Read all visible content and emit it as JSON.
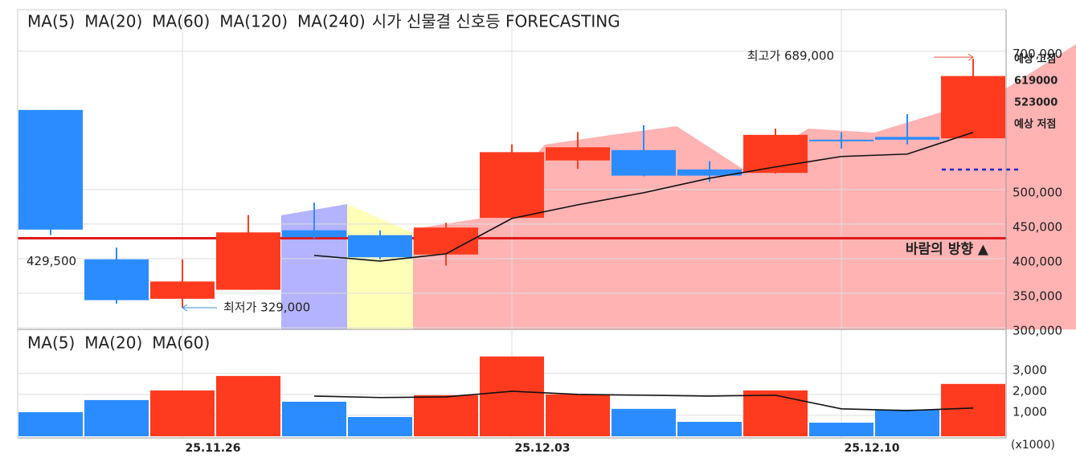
{
  "chart_data": [
    {
      "type": "candlestick",
      "legend": [
        {
          "name": "MA(5)",
          "color": "#111111"
        },
        {
          "name": "MA(20)",
          "color": "#e02020"
        },
        {
          "name": "MA(60)",
          "color": "#1a8a1a"
        },
        {
          "name": "MA(120)",
          "color": "#2020c0"
        },
        {
          "name": "MA(240)",
          "color": "#e020e0"
        }
      ],
      "title": "시가 신물결 신호등 FORECASTING",
      "categories": [
        null,
        null,
        "25.11.26",
        null,
        null,
        null,
        null,
        "25.12.03",
        null,
        null,
        null,
        null,
        "25.12.10",
        null,
        null
      ],
      "open": [
        615000,
        399000,
        342000,
        355000,
        441000,
        434000,
        406000,
        459000,
        542000,
        557000,
        529000,
        524000,
        572000,
        576000,
        574000
      ],
      "high": [
        615000,
        416000,
        399000,
        463000,
        481000,
        441000,
        452000,
        565000,
        583000,
        593000,
        541000,
        588000,
        583000,
        609000,
        689000
      ],
      "low": [
        434000,
        335000,
        329000,
        355000,
        429000,
        399000,
        390000,
        459000,
        530000,
        519000,
        511000,
        523000,
        559000,
        565000,
        574000
      ],
      "close": [
        442000,
        340000,
        367000,
        438000,
        431000,
        402000,
        445000,
        554000,
        561000,
        520000,
        520000,
        579000,
        570000,
        572000,
        664000
      ],
      "up_color": "#ff3b1f",
      "down_color": "#2b8cff",
      "series": [
        {
          "name": "MA(5)",
          "color": "#111111",
          "values": [
            null,
            null,
            null,
            null,
            404700,
            396500,
            407000,
            458100,
            477900,
            495300,
            516300,
            532600,
            547700,
            551200,
            582600
          ]
        }
      ],
      "reference_line": {
        "value": 429500,
        "label": "429,500",
        "color": "#e01818"
      },
      "annotations": {
        "high": "최고가 689,000",
        "low": "최저가 329,000",
        "wind": "바람의 방향 ▲"
      },
      "forecast": {
        "high_label": "예상 고점",
        "high": 619000,
        "low": 523000,
        "low_label": "예상 저점"
      },
      "ylim": [
        300000,
        760000
      ],
      "yticks": [
        {
          "value": 300000,
          "label": "300,000"
        },
        {
          "value": 350000,
          "label": "350,000"
        },
        {
          "value": 400000,
          "label": "400,000"
        },
        {
          "value": 450000,
          "label": "450,000"
        },
        {
          "value": 500000,
          "label": "500,000"
        },
        {
          "value": 700000,
          "label": "700,000"
        }
      ],
      "grid": true
    },
    {
      "type": "bar",
      "legend": [
        {
          "name": "MA(5)",
          "color": "#111111"
        },
        {
          "name": "MA(20)",
          "color": "#e02020"
        },
        {
          "name": "MA(60)",
          "color": "#1a8a1a"
        }
      ],
      "values": [
        1150,
        1730,
        2190,
        2880,
        1650,
        920,
        1960,
        3810,
        2000,
        1310,
        690,
        2190,
        650,
        1270,
        2500
      ],
      "series": [
        {
          "name": "MA(5)",
          "color": "#111111",
          "values": [
            null,
            null,
            null,
            null,
            1920,
            1850,
            1880,
            2150,
            2000,
            1960,
            1920,
            1960,
            1310,
            1230,
            1350
          ]
        }
      ],
      "unit": "(x1000)",
      "ylim": [
        0,
        5100
      ],
      "yticks": [
        {
          "value": 1000,
          "label": "1,000"
        },
        {
          "value": 2000,
          "label": "2,000"
        },
        {
          "value": 3000,
          "label": "3,000"
        }
      ],
      "grid": true
    }
  ]
}
